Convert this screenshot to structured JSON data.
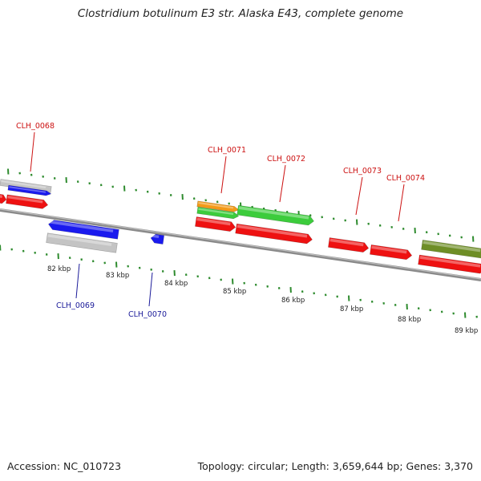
{
  "title": "Clostridium botulinum E3 str. Alaska E43, complete genome",
  "footer": {
    "accession": "Accession: NC_010723",
    "summary": "Topology: circular; Length: 3,659,644 bp; Genes: 3,370"
  },
  "colors": {
    "red": "#ee1111",
    "blue": "#1a1aee",
    "gray": "#c4c4c4",
    "green": "#3ccc3c",
    "orange": "#f39a17",
    "olive": "#6e8e26",
    "tick": "#2e8b2e",
    "upper_label": "#cc1111",
    "lower_label": "#1a1a99",
    "backbone": "#8a8a8a"
  },
  "scale_labels": [
    "82 kbp",
    "83 kbp",
    "84 kbp",
    "85 kbp",
    "86 kbp",
    "87 kbp",
    "88 kbp",
    "89 kbp"
  ],
  "gene_labels_upper": [
    "CLH_0068",
    "CLH_0071",
    "CLH_0072",
    "CLH_0073",
    "CLH_0074"
  ],
  "gene_labels_lower": [
    "CLH_0069",
    "CLH_0070"
  ]
}
